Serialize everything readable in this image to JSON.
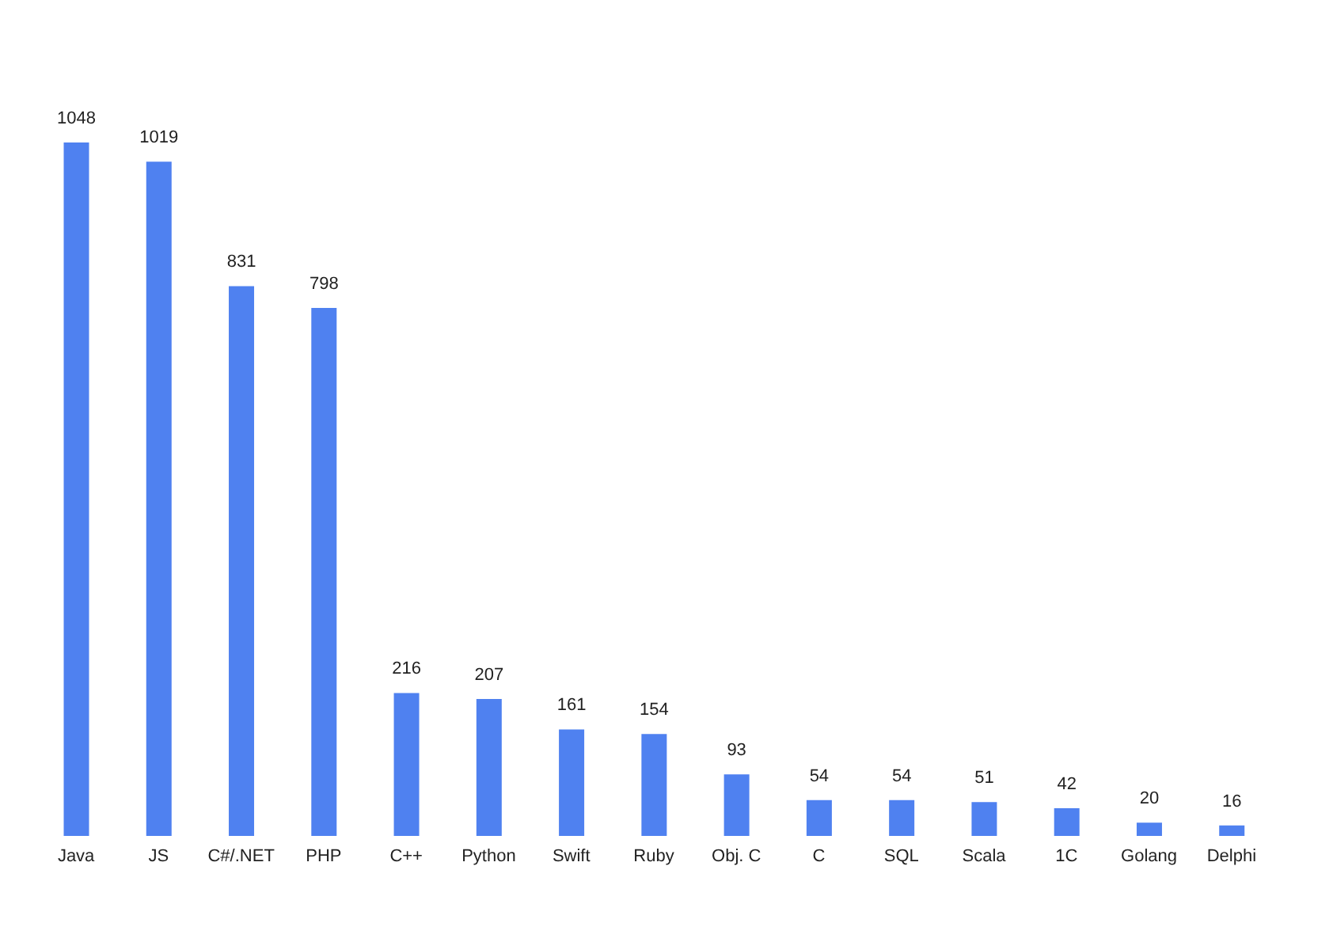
{
  "chart_data": {
    "type": "bar",
    "categories": [
      "Java",
      "JS",
      "C#/.NET",
      "PHP",
      "C++",
      "Python",
      "Swift",
      "Ruby",
      "Obj. C",
      "C",
      "SQL",
      "Scala",
      "1C",
      "Golang",
      "Delphi"
    ],
    "values": [
      1048,
      1019,
      831,
      798,
      216,
      207,
      161,
      154,
      93,
      54,
      54,
      51,
      42,
      20,
      16
    ],
    "color": "#4f81f0",
    "data_labels": true,
    "tick_labels": "x"
  }
}
